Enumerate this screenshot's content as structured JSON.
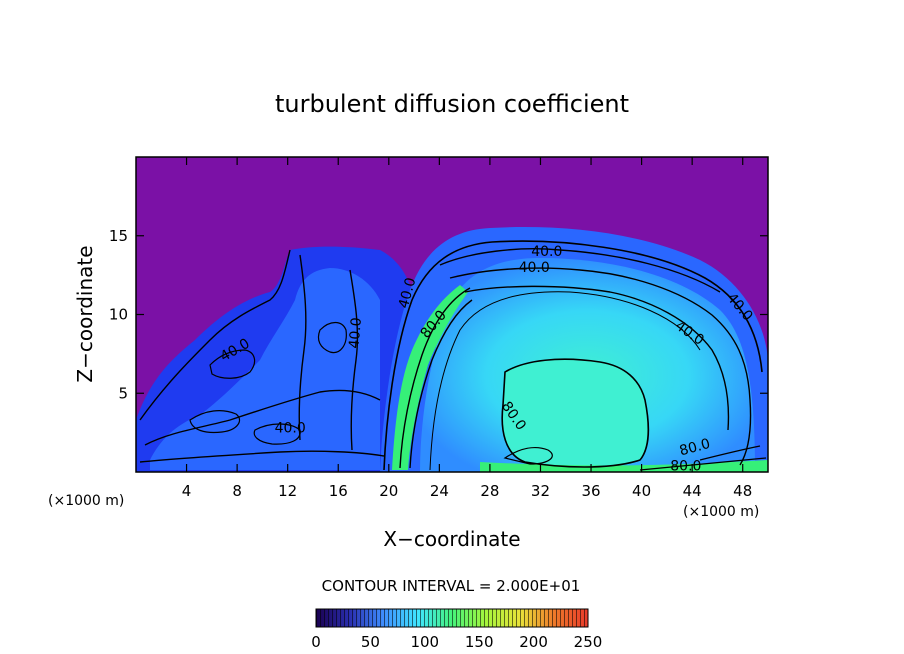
{
  "chart_data": {
    "type": "contour",
    "title": "turbulent diffusion coefficient",
    "xlabel": "X−coordinate",
    "ylabel": "Z−coordinate",
    "x_unit": "(×1000 m)",
    "y_unit": "(×1000 m)",
    "xlim": [
      0,
      50
    ],
    "ylim": [
      0,
      20
    ],
    "x_ticks": [
      4,
      8,
      12,
      16,
      20,
      24,
      28,
      32,
      36,
      40,
      44,
      48
    ],
    "x_tick_labels": [
      "4",
      "8",
      "12",
      "16",
      "20",
      "24",
      "28",
      "32",
      "36",
      "40",
      "44",
      "48"
    ],
    "y_ticks": [
      5,
      10,
      15
    ],
    "y_tick_labels": [
      "5",
      "10",
      "15"
    ],
    "contour_interval_text": "CONTOUR INTERVAL = 2.000E+01",
    "contour_labels": [
      {
        "text": "40.0",
        "x": 32.5,
        "z": 13.7,
        "rotate": 0
      },
      {
        "text": "40.0",
        "x": 31.5,
        "z": 12.7,
        "rotate": 0
      },
      {
        "text": "40.0",
        "x": 21.8,
        "z": 11.3,
        "rotate": -75
      },
      {
        "text": "80.0",
        "x": 23.8,
        "z": 9.2,
        "rotate": -50
      },
      {
        "text": "40.0",
        "x": 17.7,
        "z": 8.8,
        "rotate": -85
      },
      {
        "text": "40.0",
        "x": 8.0,
        "z": 7.5,
        "rotate": -30
      },
      {
        "text": "40.0",
        "x": 12.2,
        "z": 2.5,
        "rotate": 0
      },
      {
        "text": "40.0",
        "x": 43.6,
        "z": 8.6,
        "rotate": 35
      },
      {
        "text": "40.0",
        "x": 47.5,
        "z": 10.3,
        "rotate": 50
      },
      {
        "text": "80.0",
        "x": 29.6,
        "z": 3.4,
        "rotate": 55
      },
      {
        "text": "80.0",
        "x": 44.3,
        "z": 1.3,
        "rotate": -15
      },
      {
        "text": "80.0",
        "x": 43.5,
        "z": 0.1,
        "rotate": 0
      }
    ],
    "colorbar": {
      "min": 0,
      "max": 250,
      "tick_values": [
        0,
        50,
        100,
        150,
        200,
        250
      ],
      "tick_labels": [
        "0",
        "50",
        "100",
        "150",
        "200",
        "250"
      ],
      "colors": [
        "#1a0050",
        "#2a2fb0",
        "#3f8fff",
        "#40e6ff",
        "#46f37a",
        "#a6f63c",
        "#e8e23a",
        "#ee7a2a",
        "#e83a2a"
      ]
    },
    "field_colors": {
      "background": "#7b11a6",
      "deep_blue": "#1f3bf0",
      "blue": "#2a67ff",
      "light_blue": "#3ea8ff",
      "cyan": "#37d7f6",
      "aqua": "#3ff0d2",
      "green": "#36f078"
    }
  }
}
